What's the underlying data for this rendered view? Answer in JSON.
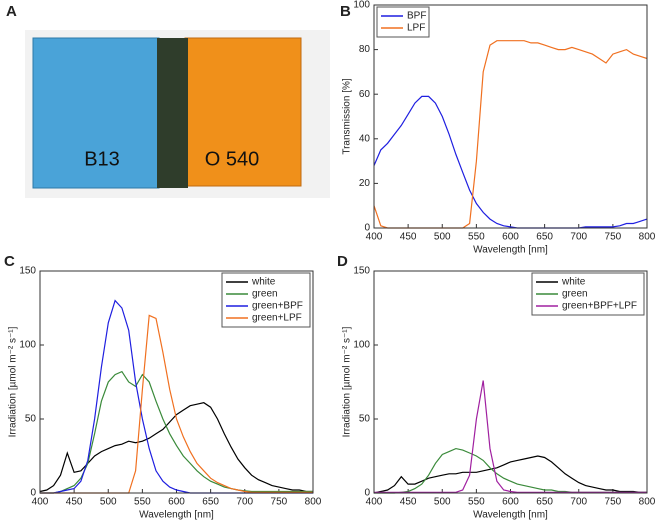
{
  "photo": {
    "panel_label": "A",
    "labels": [
      "B13",
      "O 540"
    ]
  },
  "chart_data": [
    {
      "type": "line",
      "panel_label": "B",
      "xlabel": "Wavelength [nm]",
      "ylabel": "Transmission [%]",
      "xlim": [
        400,
        800
      ],
      "ylim": [
        0,
        100
      ],
      "xticks": [
        400,
        450,
        500,
        550,
        600,
        650,
        700,
        750,
        800
      ],
      "yticks": [
        0,
        20,
        40,
        60,
        80,
        100
      ],
      "legend": "upper left",
      "x": [
        400,
        410,
        420,
        430,
        440,
        450,
        460,
        470,
        480,
        490,
        500,
        510,
        520,
        530,
        540,
        550,
        560,
        570,
        580,
        590,
        600,
        610,
        620,
        630,
        640,
        650,
        660,
        670,
        680,
        690,
        700,
        710,
        720,
        730,
        740,
        750,
        760,
        770,
        780,
        790,
        800
      ],
      "series": [
        {
          "name": "BPF",
          "color": "#1f1fe0",
          "values": [
            28,
            35,
            38,
            42,
            46,
            51,
            56,
            59,
            59,
            56,
            50,
            42,
            33,
            25,
            17,
            11,
            7,
            4,
            2,
            1,
            0.5,
            0,
            0,
            0,
            0,
            0,
            0,
            0,
            0,
            0,
            0,
            0.5,
            0.5,
            0.5,
            0.5,
            0.5,
            1,
            2,
            2,
            3,
            4
          ]
        },
        {
          "name": "LPF",
          "color": "#f07020",
          "values": [
            10,
            1,
            0,
            0,
            0,
            0,
            0,
            0,
            0,
            0,
            0,
            0,
            0,
            0,
            2,
            30,
            70,
            82,
            84,
            84,
            84,
            84,
            84,
            83,
            83,
            82,
            81,
            80,
            80,
            81,
            80,
            79,
            78,
            76,
            74,
            78,
            79,
            80,
            78,
            77,
            76
          ]
        }
      ]
    },
    {
      "type": "line",
      "panel_label": "C",
      "xlabel": "Wavelength [nm]",
      "ylabel": "Irradiation [µmol m⁻² s⁻¹]",
      "xlim": [
        400,
        800
      ],
      "ylim": [
        0,
        150
      ],
      "xticks": [
        400,
        450,
        500,
        550,
        600,
        650,
        700,
        750,
        800
      ],
      "yticks": [
        0,
        50,
        100,
        150
      ],
      "legend": "upper right",
      "x": [
        400,
        410,
        420,
        430,
        440,
        450,
        460,
        470,
        480,
        490,
        500,
        510,
        520,
        530,
        540,
        550,
        560,
        570,
        580,
        590,
        600,
        610,
        620,
        630,
        640,
        650,
        660,
        670,
        680,
        690,
        700,
        710,
        720,
        730,
        740,
        750,
        760,
        770,
        780,
        790,
        800
      ],
      "series": [
        {
          "name": "white",
          "color": "#000000",
          "values": [
            1,
            2,
            5,
            12,
            27,
            14,
            15,
            20,
            25,
            28,
            30,
            32,
            33,
            35,
            34,
            35,
            37,
            40,
            43,
            48,
            53,
            56,
            59,
            60,
            61,
            58,
            50,
            40,
            31,
            23,
            17,
            12,
            9,
            7,
            5,
            4,
            3,
            2,
            2,
            1,
            1
          ]
        },
        {
          "name": "green",
          "color": "#3a8a3a",
          "values": [
            0,
            0,
            0,
            1,
            3,
            5,
            10,
            20,
            40,
            62,
            75,
            80,
            82,
            75,
            72,
            80,
            75,
            62,
            50,
            40,
            32,
            25,
            20,
            15,
            11,
            8,
            6,
            4,
            3,
            2,
            1.5,
            1,
            1,
            1,
            1,
            1,
            1,
            1,
            1,
            1,
            1
          ]
        },
        {
          "name": "green+BPF",
          "color": "#1f1fe0",
          "values": [
            0,
            0,
            0,
            1,
            2,
            3,
            8,
            22,
            50,
            85,
            115,
            130,
            125,
            110,
            75,
            50,
            30,
            15,
            8,
            4,
            2,
            1,
            0,
            0,
            0,
            0,
            0,
            0,
            0,
            0,
            0,
            0,
            0,
            0,
            0,
            0,
            0,
            0,
            0,
            0,
            0
          ]
        },
        {
          "name": "green+LPF",
          "color": "#f07020",
          "values": [
            0,
            0,
            0,
            0,
            0,
            0,
            0,
            0,
            0,
            0,
            0,
            0,
            0,
            0,
            15,
            70,
            120,
            118,
            95,
            70,
            50,
            38,
            28,
            20,
            15,
            10,
            7,
            5,
            3,
            2,
            1,
            0.5,
            0.5,
            0.5,
            0.5,
            0.5,
            0.5,
            0.5,
            0.5,
            0.5,
            0.5
          ]
        }
      ]
    },
    {
      "type": "line",
      "panel_label": "D",
      "xlabel": "Wavelength [nm]",
      "ylabel": "Irradiation [µmol m⁻² s⁻¹]",
      "xlim": [
        400,
        800
      ],
      "ylim": [
        0,
        150
      ],
      "xticks": [
        400,
        450,
        500,
        550,
        600,
        650,
        700,
        750,
        800
      ],
      "yticks": [
        0,
        50,
        100,
        150
      ],
      "legend": "upper right",
      "x": [
        400,
        410,
        420,
        430,
        440,
        450,
        460,
        470,
        480,
        490,
        500,
        510,
        520,
        530,
        540,
        550,
        560,
        570,
        580,
        590,
        600,
        610,
        620,
        630,
        640,
        650,
        660,
        670,
        680,
        690,
        700,
        710,
        720,
        730,
        740,
        750,
        760,
        770,
        780,
        790,
        800
      ],
      "series": [
        {
          "name": "white",
          "color": "#000000",
          "values": [
            0,
            1,
            2,
            5,
            11,
            6,
            6,
            8,
            10,
            11,
            12,
            13,
            13,
            14,
            14,
            14,
            15,
            16,
            17,
            19,
            21,
            22,
            23,
            24,
            25,
            24,
            21,
            17,
            13,
            10,
            7,
            5,
            4,
            3,
            2,
            2,
            1,
            1,
            1,
            0.5,
            0.5
          ]
        },
        {
          "name": "green",
          "color": "#3a8a3a",
          "values": [
            0,
            0,
            0,
            0,
            0.5,
            1,
            3,
            6,
            12,
            20,
            26,
            28,
            30,
            29,
            27,
            25,
            22,
            17,
            13,
            10,
            8,
            6,
            5,
            4,
            3,
            2,
            2,
            1,
            1,
            0.5,
            0.5,
            0.5,
            0.5,
            0.5,
            0.5,
            0.5,
            0.5,
            0.5,
            0.5,
            0.5,
            0.5
          ]
        },
        {
          "name": "green+BPF+LPF",
          "color": "#a020a0",
          "values": [
            0.5,
            0.5,
            0.5,
            0.5,
            0.5,
            0.5,
            0.5,
            0.5,
            0.5,
            0.5,
            0.5,
            0.5,
            0.5,
            2,
            12,
            50,
            76,
            30,
            8,
            2,
            1,
            0.5,
            0.5,
            0.5,
            0.5,
            0.5,
            0.5,
            0.5,
            0.5,
            0.5,
            0.5,
            0.5,
            0.5,
            0.5,
            0.5,
            0.5,
            0.5,
            0.5,
            0.5,
            0.5,
            0.5
          ]
        }
      ]
    }
  ]
}
